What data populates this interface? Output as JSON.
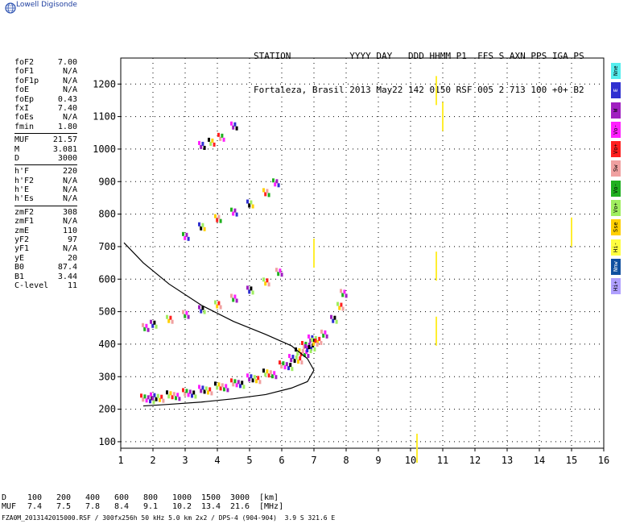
{
  "logo": {
    "text": "Lowell Digisonde"
  },
  "header": {
    "line1": "STATION           YYYY DAY   DDD HHMM P1  FFS S AXN PPS IGA PS",
    "line2": "Fortaleza, Brasil 2013 May22 142 0150 RSF 005 2 713 100 +0+ B2"
  },
  "params": {
    "group1": [
      {
        "name": "foF2",
        "value": "7.00"
      },
      {
        "name": "foF1",
        "value": "N/A"
      },
      {
        "name": "foF1p",
        "value": "N/A"
      },
      {
        "name": "foE",
        "value": "N/A"
      },
      {
        "name": "foEp",
        "value": "0.43"
      },
      {
        "name": "fxI",
        "value": "7.40"
      },
      {
        "name": "foEs",
        "value": "N/A"
      },
      {
        "name": "fmin",
        "value": "1.80"
      }
    ],
    "group2": [
      {
        "name": "MUF",
        "value": "21.57"
      },
      {
        "name": "M",
        "value": "3.081"
      },
      {
        "name": "D",
        "value": "3000"
      }
    ],
    "group3": [
      {
        "name": "h'F",
        "value": "220"
      },
      {
        "name": "h'F2",
        "value": "N/A"
      },
      {
        "name": "h'E",
        "value": "N/A"
      },
      {
        "name": "h'Es",
        "value": "N/A"
      }
    ],
    "group4": [
      {
        "name": "zmF2",
        "value": "308"
      },
      {
        "name": "zmF1",
        "value": "N/A"
      },
      {
        "name": "zmE",
        "value": "110"
      },
      {
        "name": "yF2",
        "value": "97"
      },
      {
        "name": "yF1",
        "value": "N/A"
      },
      {
        "name": "yE",
        "value": "20"
      },
      {
        "name": "B0",
        "value": "87.4"
      },
      {
        "name": "B1",
        "value": "3.44"
      },
      {
        "name": "C-level",
        "value": "11"
      }
    ]
  },
  "legend": [
    {
      "label": "Nne",
      "color": "#55eeee"
    },
    {
      "label": "E",
      "color": "#3030d0"
    },
    {
      "label": "W",
      "color": "#a020c0"
    },
    {
      "label": "Vo-",
      "color": "#ff20ff"
    },
    {
      "label": "Vo+",
      "color": "#ff2020"
    },
    {
      "label": "Sw",
      "color": "#f0a0a0"
    },
    {
      "label": "Vo-",
      "color": "#20b020"
    },
    {
      "label": "Vo+",
      "color": "#a0ee60"
    },
    {
      "label": "Sse",
      "color": "#ffd000"
    },
    {
      "label": "Hi-",
      "color": "#ffff40"
    },
    {
      "label": "Nnw",
      "color": "#1050a0"
    },
    {
      "label": "Hi+",
      "color": "#b0a0ff"
    }
  ],
  "mufTable": {
    "dLabel": "D",
    "mufLabel": "MUF",
    "dValues": [
      "100",
      "200",
      "400",
      "600",
      "800",
      "1000",
      "1500",
      "3000",
      "[km]"
    ],
    "mufValues": [
      "7.4",
      "7.5",
      "7.8",
      "8.4",
      "9.1",
      "10.2",
      "13.4",
      "21.6",
      "[MHz]"
    ]
  },
  "footer": "FZA0M_2013142015000.RSF / 300fx256h 50 kHz 5.0 km 2x2 / DPS-4 (904-904)  3.9 S 321.6 E",
  "chart_data": {
    "type": "scatter",
    "xlim": [
      1,
      16
    ],
    "ylim": [
      80,
      1280
    ],
    "xticks": [
      1,
      2,
      3,
      4,
      5,
      6,
      7,
      8,
      9,
      10,
      11,
      12,
      13,
      14,
      15,
      16
    ],
    "yticks": [
      100,
      200,
      300,
      400,
      500,
      600,
      700,
      800,
      900,
      1000,
      1100,
      1200
    ],
    "grid": true,
    "traces": [
      {
        "name": "F-trace",
        "x": [
          1.7,
          2.0,
          2.5,
          3.0,
          3.5,
          4.0,
          4.5,
          5.0,
          5.5,
          6.0,
          6.3,
          6.5,
          6.7,
          6.9
        ],
        "y": [
          228,
          232,
          238,
          245,
          255,
          265,
          275,
          290,
          305,
          330,
          350,
          370,
          390,
          410
        ]
      },
      {
        "name": "F-trace-2hop",
        "x": [
          1.75,
          2.0,
          2.5,
          3.0,
          3.5,
          4.0,
          4.5,
          5.0,
          5.5,
          5.9
        ],
        "y": [
          445,
          455,
          470,
          485,
          500,
          515,
          535,
          560,
          585,
          615
        ]
      },
      {
        "name": "F-trace-3hop",
        "x": [
          3.0,
          3.5,
          4.0,
          4.5,
          5.0,
          5.5,
          5.8
        ],
        "y": [
          725,
          755,
          780,
          800,
          825,
          860,
          890
        ]
      },
      {
        "name": "F-trace-4hop",
        "x": [
          3.5,
          3.8,
          4.1,
          4.5
        ],
        "y": [
          1005,
          1015,
          1030,
          1065
        ]
      },
      {
        "name": "X-trace",
        "x": [
          6.8,
          7.0,
          7.3,
          7.6,
          7.8,
          7.9
        ],
        "y": [
          380,
          400,
          425,
          470,
          510,
          550
        ]
      },
      {
        "name": "misc",
        "x": [
          10.8,
          10.8,
          10.8,
          11.0,
          15.0,
          7.0,
          10.2
        ],
        "y": [
          1180,
          640,
          440,
          1100,
          745,
          680,
          80
        ]
      }
    ],
    "profile": {
      "x": [
        1.7,
        2.5,
        3.5,
        4.5,
        5.5,
        6.3,
        6.8,
        7.0,
        6.8,
        6.3,
        5.5,
        4.5,
        3.5,
        2.5,
        1.7,
        1.1
      ],
      "y": [
        210,
        215,
        222,
        232,
        245,
        265,
        285,
        320,
        355,
        395,
        430,
        470,
        520,
        585,
        650,
        712
      ]
    }
  }
}
